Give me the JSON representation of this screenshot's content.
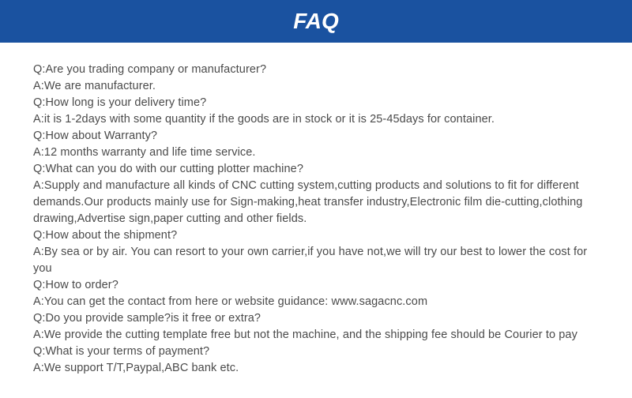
{
  "header": {
    "title": "FAQ",
    "bg_color": "#1a52a0",
    "title_color": "#ffffff"
  },
  "content": {
    "text_color": "#4a4a4a",
    "lines": [
      "Q:Are you trading company or manufacturer?",
      "A:We are manufacturer.",
      "Q:How long is your delivery time?",
      "A:it is 1-2days with some quantity if the goods are in stock or it is 25-45days for container.",
      "Q:How about Warranty?",
      "A:12 months warranty and life time service.",
      "Q:What can you do with our cutting plotter machine?",
      "A:Supply and manufacture all kinds of CNC cutting system,cutting products and solutions to fit for different demands.Our products mainly use for Sign-making,heat transfer industry,Electronic film die-cutting,clothing drawing,Advertise sign,paper cutting and other fields.",
      "Q:How about the shipment?",
      "A:By sea or by air. You can resort to your own carrier,if you have not,we will try our best to lower the cost for you",
      "Q:How to order?",
      "A:You can get the contact from here or website guidance: www.sagacnc.com",
      "Q:Do you provide sample?is it free or extra?",
      "A:We provide the cutting template free but not the machine, and the shipping fee should be Courier to pay",
      "Q:What is your terms of payment?",
      "A:We support T/T,Paypal,ABC bank etc."
    ]
  }
}
